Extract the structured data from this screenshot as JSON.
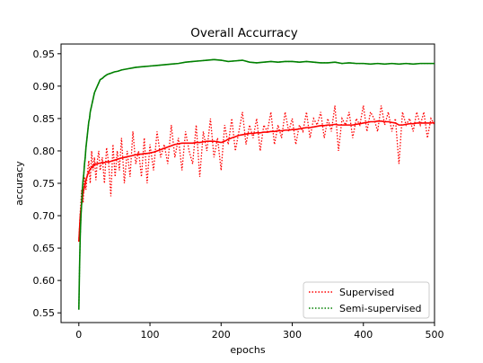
{
  "chart_data": {
    "type": "line",
    "title": "Overall Accurracy",
    "xlabel": "epochs",
    "ylabel": "accuracy",
    "xlim": [
      -25,
      500
    ],
    "ylim": [
      0.535,
      0.965
    ],
    "xticks": [
      0,
      100,
      200,
      300,
      400,
      500
    ],
    "yticks": [
      0.55,
      0.6,
      0.65,
      0.7,
      0.75,
      0.8,
      0.85,
      0.9,
      0.95
    ],
    "xtick_labels": [
      "0",
      "100",
      "200",
      "300",
      "400",
      "500"
    ],
    "ytick_labels": [
      "0.55",
      "0.60",
      "0.65",
      "0.70",
      "0.75",
      "0.80",
      "0.85",
      "0.90",
      "0.95"
    ],
    "grid": false,
    "legend_position": "lower-right",
    "series": [
      {
        "name": "Supervised",
        "color": "#ff0000",
        "style": "dotted",
        "x": [
          0,
          2,
          4,
          6,
          8,
          10,
          12,
          14,
          16,
          18,
          20,
          22,
          24,
          26,
          28,
          30,
          33,
          36,
          39,
          42,
          45,
          48,
          51,
          54,
          57,
          60,
          64,
          68,
          72,
          76,
          80,
          84,
          88,
          92,
          96,
          100,
          105,
          110,
          115,
          120,
          125,
          130,
          135,
          140,
          145,
          150,
          155,
          160,
          165,
          170,
          175,
          180,
          185,
          190,
          195,
          200,
          205,
          210,
          215,
          220,
          225,
          230,
          235,
          240,
          245,
          250,
          255,
          260,
          265,
          270,
          275,
          280,
          285,
          290,
          295,
          300,
          305,
          310,
          315,
          320,
          325,
          330,
          335,
          340,
          345,
          350,
          355,
          360,
          365,
          370,
          375,
          380,
          385,
          390,
          395,
          400,
          405,
          410,
          415,
          420,
          425,
          430,
          435,
          440,
          445,
          450,
          455,
          460,
          465,
          470,
          475,
          480,
          485,
          490,
          495,
          500
        ],
        "values": [
          0.66,
          0.705,
          0.74,
          0.72,
          0.76,
          0.74,
          0.765,
          0.785,
          0.75,
          0.8,
          0.77,
          0.79,
          0.755,
          0.785,
          0.8,
          0.77,
          0.79,
          0.75,
          0.805,
          0.78,
          0.73,
          0.81,
          0.76,
          0.8,
          0.77,
          0.82,
          0.75,
          0.8,
          0.76,
          0.83,
          0.78,
          0.8,
          0.76,
          0.82,
          0.75,
          0.81,
          0.77,
          0.83,
          0.79,
          0.81,
          0.78,
          0.84,
          0.79,
          0.82,
          0.77,
          0.83,
          0.8,
          0.78,
          0.84,
          0.76,
          0.83,
          0.8,
          0.85,
          0.79,
          0.82,
          0.77,
          0.84,
          0.81,
          0.85,
          0.8,
          0.83,
          0.86,
          0.81,
          0.84,
          0.82,
          0.85,
          0.8,
          0.84,
          0.83,
          0.86,
          0.81,
          0.84,
          0.82,
          0.86,
          0.83,
          0.85,
          0.81,
          0.84,
          0.83,
          0.86,
          0.82,
          0.85,
          0.84,
          0.86,
          0.82,
          0.85,
          0.83,
          0.87,
          0.8,
          0.85,
          0.84,
          0.86,
          0.82,
          0.85,
          0.84,
          0.87,
          0.83,
          0.86,
          0.85,
          0.83,
          0.87,
          0.84,
          0.86,
          0.83,
          0.85,
          0.78,
          0.86,
          0.84,
          0.85,
          0.83,
          0.86,
          0.84,
          0.86,
          0.82,
          0.85,
          0.84
        ],
        "smoothed": [
          0.66,
          0.7,
          0.72,
          0.735,
          0.745,
          0.755,
          0.762,
          0.768,
          0.772,
          0.775,
          0.777,
          0.779,
          0.78,
          0.78,
          0.781,
          0.781,
          0.782,
          0.782,
          0.783,
          0.783,
          0.784,
          0.785,
          0.786,
          0.787,
          0.788,
          0.789,
          0.79,
          0.791,
          0.792,
          0.793,
          0.794,
          0.795,
          0.795,
          0.796,
          0.796,
          0.797,
          0.798,
          0.8,
          0.802,
          0.804,
          0.806,
          0.808,
          0.81,
          0.811,
          0.812,
          0.812,
          0.812,
          0.812,
          0.813,
          0.813,
          0.814,
          0.815,
          0.815,
          0.815,
          0.814,
          0.813,
          0.815,
          0.818,
          0.82,
          0.822,
          0.824,
          0.825,
          0.826,
          0.827,
          0.827,
          0.828,
          0.828,
          0.829,
          0.829,
          0.83,
          0.83,
          0.831,
          0.831,
          0.832,
          0.832,
          0.833,
          0.833,
          0.834,
          0.835,
          0.836,
          0.836,
          0.837,
          0.838,
          0.839,
          0.839,
          0.84,
          0.84,
          0.841,
          0.84,
          0.84,
          0.84,
          0.84,
          0.84,
          0.841,
          0.842,
          0.843,
          0.844,
          0.845,
          0.845,
          0.846,
          0.846,
          0.845,
          0.845,
          0.844,
          0.843,
          0.84,
          0.84,
          0.841,
          0.842,
          0.842,
          0.843,
          0.843,
          0.843,
          0.843,
          0.843,
          0.844
        ]
      },
      {
        "name": "Semi-supervised",
        "color": "#008000",
        "style": "dotted",
        "x": [
          0,
          1,
          2,
          3,
          4,
          5,
          6,
          7,
          8,
          9,
          10,
          11,
          12,
          13,
          14,
          15,
          16,
          17,
          18,
          20,
          22,
          24,
          26,
          28,
          30,
          33,
          36,
          40,
          45,
          50,
          55,
          60,
          65,
          70,
          75,
          80,
          90,
          100,
          110,
          120,
          130,
          140,
          150,
          160,
          170,
          180,
          190,
          200,
          210,
          220,
          230,
          240,
          250,
          260,
          270,
          280,
          290,
          300,
          310,
          320,
          330,
          340,
          350,
          360,
          370,
          380,
          390,
          400,
          410,
          420,
          430,
          440,
          450,
          460,
          470,
          480,
          490,
          500
        ],
        "values": [
          0.555,
          0.62,
          0.67,
          0.7,
          0.72,
          0.74,
          0.755,
          0.765,
          0.78,
          0.79,
          0.805,
          0.815,
          0.825,
          0.835,
          0.845,
          0.85,
          0.86,
          0.865,
          0.87,
          0.88,
          0.89,
          0.895,
          0.9,
          0.905,
          0.91,
          0.912,
          0.915,
          0.918,
          0.92,
          0.922,
          0.923,
          0.925,
          0.926,
          0.927,
          0.928,
          0.929,
          0.93,
          0.931,
          0.932,
          0.933,
          0.934,
          0.935,
          0.937,
          0.938,
          0.939,
          0.94,
          0.941,
          0.94,
          0.938,
          0.939,
          0.94,
          0.937,
          0.936,
          0.937,
          0.938,
          0.937,
          0.938,
          0.938,
          0.937,
          0.938,
          0.937,
          0.936,
          0.936,
          0.937,
          0.935,
          0.936,
          0.935,
          0.935,
          0.934,
          0.935,
          0.934,
          0.935,
          0.934,
          0.935,
          0.934,
          0.935,
          0.935,
          0.935
        ],
        "smoothed": [
          0.555,
          0.62,
          0.67,
          0.7,
          0.72,
          0.74,
          0.755,
          0.765,
          0.78,
          0.79,
          0.805,
          0.815,
          0.825,
          0.835,
          0.845,
          0.85,
          0.86,
          0.865,
          0.87,
          0.88,
          0.89,
          0.895,
          0.9,
          0.905,
          0.91,
          0.912,
          0.915,
          0.918,
          0.92,
          0.922,
          0.923,
          0.925,
          0.926,
          0.927,
          0.928,
          0.929,
          0.93,
          0.931,
          0.932,
          0.933,
          0.934,
          0.935,
          0.937,
          0.938,
          0.939,
          0.94,
          0.941,
          0.94,
          0.938,
          0.939,
          0.94,
          0.937,
          0.936,
          0.937,
          0.938,
          0.937,
          0.938,
          0.938,
          0.937,
          0.938,
          0.937,
          0.936,
          0.936,
          0.937,
          0.935,
          0.936,
          0.935,
          0.935,
          0.934,
          0.935,
          0.934,
          0.935,
          0.934,
          0.935,
          0.934,
          0.935,
          0.935,
          0.935
        ]
      }
    ]
  }
}
